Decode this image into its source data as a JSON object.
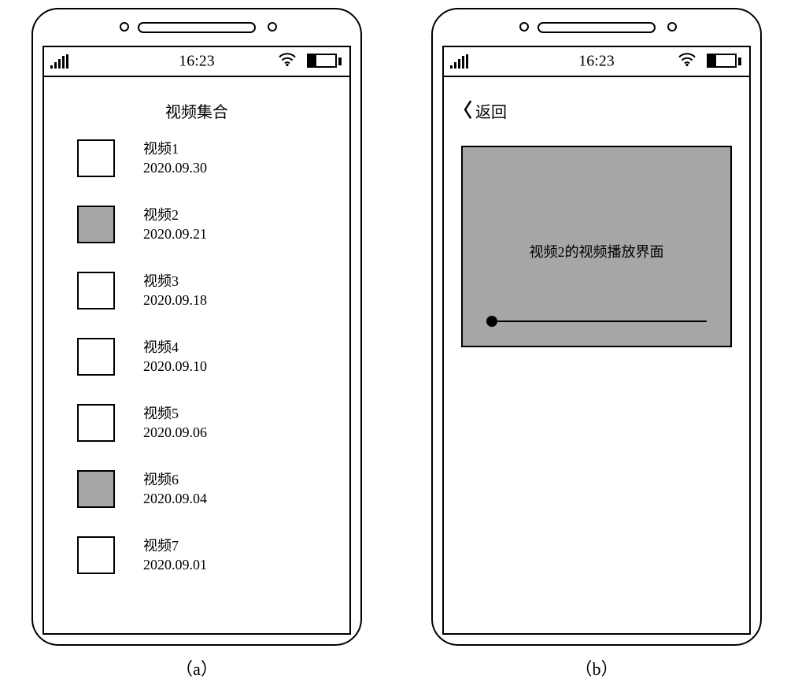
{
  "colors": {
    "grey_fill": "#a6a6a6",
    "white": "#ffffff",
    "black": "#000000"
  },
  "status_bar": {
    "time": "16:23",
    "battery_fill_pct": 30
  },
  "phone_a": {
    "title": "视频集合",
    "sublabel": "（a）",
    "items": [
      {
        "name": "视频1",
        "date": "2020.09.30",
        "filled": false
      },
      {
        "name": "视频2",
        "date": "2020.09.21",
        "filled": true
      },
      {
        "name": "视频3",
        "date": "2020.09.18",
        "filled": false
      },
      {
        "name": "视频4",
        "date": "2020.09.10",
        "filled": false
      },
      {
        "name": "视频5",
        "date": "2020.09.06",
        "filled": false
      },
      {
        "name": "视频6",
        "date": "2020.09.04",
        "filled": true
      },
      {
        "name": "视频7",
        "date": "2020.09.01",
        "filled": false
      }
    ]
  },
  "phone_b": {
    "back_label": "返回",
    "player_caption": "视频2的视频播放界面",
    "player_bg": "#a6a6a6",
    "sublabel": "（b）"
  }
}
